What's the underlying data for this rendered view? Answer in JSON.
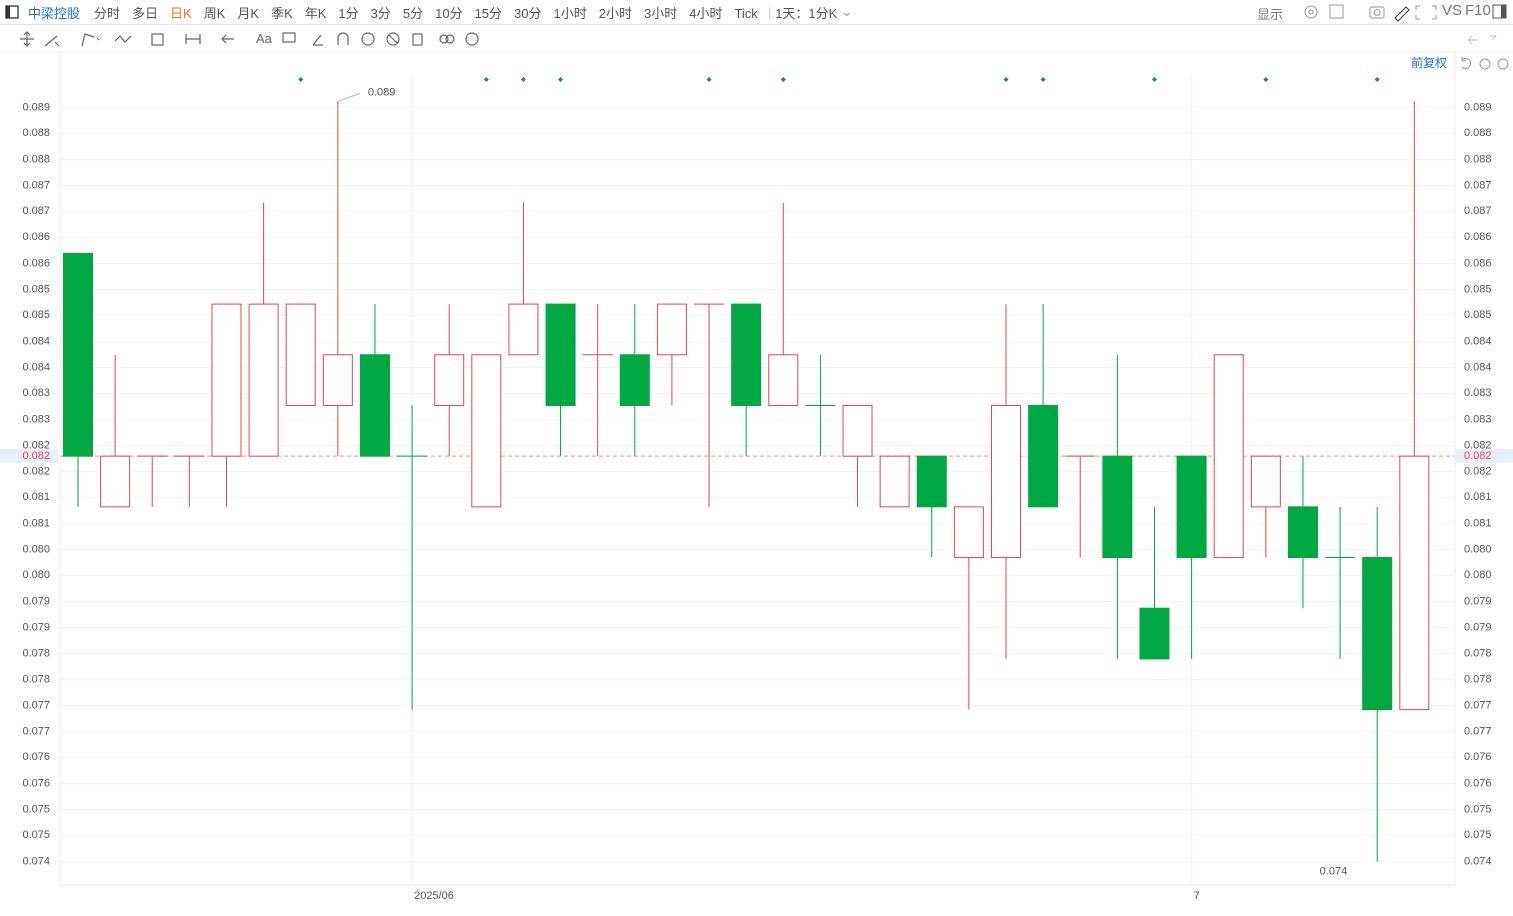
{
  "toolbar": {
    "symbol": "中梁控股",
    "periods": [
      "分时",
      "多日",
      "日K",
      "周K",
      "月K",
      "季K",
      "年K",
      "1分",
      "3分",
      "5分",
      "10分",
      "15分",
      "30分",
      "1小时",
      "2小时",
      "3小时",
      "4小时",
      "Tick"
    ],
    "active_period": 2,
    "range": "1天：1分K",
    "display": "显示",
    "vs": "VS",
    "f10": "F10",
    "adjust": "前复权"
  },
  "chart_data": {
    "type": "candlestick",
    "categories": [
      null,
      null,
      null,
      null,
      null,
      null,
      null,
      null,
      null,
      "2025/06",
      null,
      null,
      null,
      null,
      null,
      null,
      null,
      null,
      null,
      null,
      null,
      null,
      null,
      null,
      null,
      null,
      null,
      null,
      null,
      null,
      "7",
      null,
      null,
      null,
      null,
      null,
      null
    ],
    "open": [
      0.086,
      0.081,
      0.082,
      0.082,
      0.082,
      0.082,
      0.083,
      0.083,
      0.084,
      0.082,
      0.083,
      0.081,
      0.084,
      0.085,
      0.084,
      0.084,
      0.084,
      0.085,
      0.085,
      0.083,
      0.083,
      0.082,
      0.081,
      0.082,
      0.08,
      0.08,
      0.083,
      0.082,
      0.082,
      0.079,
      0.082,
      0.08,
      0.081,
      0.081,
      0.08,
      0.08,
      0.077
    ],
    "high": [
      0.086,
      0.084,
      0.082,
      0.082,
      0.085,
      0.087,
      0.085,
      0.089,
      0.085,
      0.083,
      0.085,
      0.084,
      0.087,
      0.085,
      0.085,
      0.085,
      0.085,
      0.085,
      0.085,
      0.087,
      0.084,
      0.083,
      0.082,
      0.082,
      0.081,
      0.085,
      0.085,
      0.082,
      0.084,
      0.081,
      0.082,
      0.084,
      0.082,
      0.082,
      0.081,
      0.081,
      0.089
    ],
    "low": [
      0.081,
      0.081,
      0.081,
      0.081,
      0.081,
      0.082,
      0.083,
      0.082,
      0.082,
      0.077,
      0.082,
      0.081,
      0.084,
      0.082,
      0.082,
      0.082,
      0.083,
      0.081,
      0.082,
      0.083,
      0.082,
      0.081,
      0.081,
      0.08,
      0.077,
      0.078,
      0.081,
      0.08,
      0.078,
      0.078,
      0.078,
      0.08,
      0.08,
      0.079,
      0.078,
      0.074,
      0.077
    ],
    "close": [
      0.082,
      0.082,
      0.082,
      0.082,
      0.085,
      0.085,
      0.085,
      0.084,
      0.082,
      0.082,
      0.084,
      0.084,
      0.085,
      0.083,
      0.084,
      0.083,
      0.085,
      0.085,
      0.083,
      0.084,
      0.083,
      0.083,
      0.082,
      0.081,
      0.081,
      0.083,
      0.081,
      0.082,
      0.08,
      0.078,
      0.08,
      0.084,
      0.082,
      0.08,
      0.08,
      0.077,
      0.082
    ],
    "colors": [
      "#00a843",
      "#e8474b",
      "#e8474b",
      "#e8474b",
      "#e8474b",
      "#e8474b",
      "#e8474b",
      "#e8474b",
      "#00a843",
      "#00a843",
      "#e8474b",
      "#e8474b",
      "#e8474b",
      "#00a843",
      "#e8474b",
      "#00a843",
      "#e8474b",
      "#e8474b",
      "#00a843",
      "#e8474b",
      "#00a843",
      "#e8474b",
      "#e8474b",
      "#00a843",
      "#e8474b",
      "#e8474b",
      "#00a843",
      "#e8474b",
      "#00a843",
      "#00a843",
      "#00a843",
      "#e8474b",
      "#e8474b",
      "#00a843",
      "#00a843",
      "#00a843",
      "#e8474b"
    ],
    "ylim": [
      0.07354,
      0.0895
    ],
    "yticks": [
      {
        "value": 0.08888,
        "label": "0.089"
      },
      {
        "value": 0.08837,
        "label": "0.088"
      },
      {
        "value": 0.08785,
        "label": "0.088"
      },
      {
        "value": 0.08734,
        "label": "0.087"
      },
      {
        "value": 0.08683,
        "label": "0.087"
      },
      {
        "value": 0.08632,
        "label": "0.086"
      },
      {
        "value": 0.0858,
        "label": "0.086"
      },
      {
        "value": 0.08529,
        "label": "0.085"
      },
      {
        "value": 0.08478,
        "label": "0.085"
      },
      {
        "value": 0.08426,
        "label": "0.084"
      },
      {
        "value": 0.08375,
        "label": "0.084"
      },
      {
        "value": 0.08324,
        "label": "0.083"
      },
      {
        "value": 0.08272,
        "label": "0.083"
      },
      {
        "value": 0.08221,
        "label": "0.082"
      },
      {
        "value": 0.0817,
        "label": "0.082"
      },
      {
        "value": 0.08119,
        "label": "0.081"
      },
      {
        "value": 0.08067,
        "label": "0.081"
      },
      {
        "value": 0.08016,
        "label": "0.080"
      },
      {
        "value": 0.07965,
        "label": "0.080"
      },
      {
        "value": 0.07913,
        "label": "0.079"
      },
      {
        "value": 0.07862,
        "label": "0.079"
      },
      {
        "value": 0.07811,
        "label": "0.078"
      },
      {
        "value": 0.07759,
        "label": "0.078"
      },
      {
        "value": 0.07708,
        "label": "0.077"
      },
      {
        "value": 0.07657,
        "label": "0.077"
      },
      {
        "value": 0.07606,
        "label": "0.076"
      },
      {
        "value": 0.07554,
        "label": "0.076"
      },
      {
        "value": 0.07503,
        "label": "0.075"
      },
      {
        "value": 0.07452,
        "label": "0.075"
      },
      {
        "value": 0.074,
        "label": "0.074"
      }
    ],
    "grid": true,
    "last_price": 0.082,
    "high_label": 0.089,
    "low_label": 0.074,
    "event_markers": [
      6,
      11,
      12,
      13,
      17,
      19,
      25,
      26,
      29,
      32,
      35
    ]
  }
}
